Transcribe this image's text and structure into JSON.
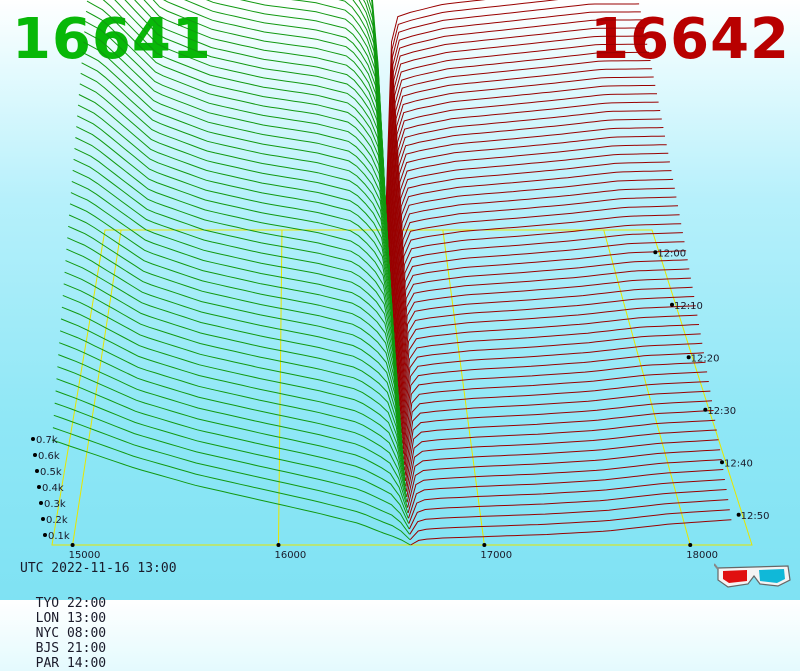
{
  "header": {
    "bid_price": "16641",
    "ask_price": "16642"
  },
  "footer": {
    "utc_line": "UTC 2022-11-16 13:00",
    "timezones": [
      "TYO 22:00",
      "LON 13:00",
      "NYC 08:00",
      "BJS 21:00",
      "PAR 14:00"
    ]
  },
  "colors": {
    "bid": "#08b808",
    "ask": "#b80000",
    "bid_line": "#119911",
    "ask_line": "#990000",
    "grid": "#e6e600",
    "text": "#1a1a2a"
  },
  "chart_data": {
    "type": "area",
    "subtype": "3d-orderbook-depth-waterfall",
    "x_ticks": [
      "15000",
      "16000",
      "17000",
      "18000"
    ],
    "x_range": [
      14900,
      18300
    ],
    "mid_price": 16641,
    "y_ticks": [
      "0.1k",
      "0.2k",
      "0.3k",
      "0.4k",
      "0.5k",
      "0.6k",
      "0.7k"
    ],
    "y_range": [
      0,
      800
    ],
    "time_ticks": [
      "12:00",
      "12:10",
      "12:20",
      "12:30",
      "12:40",
      "12:50"
    ],
    "time_range": [
      "12:00",
      "13:00"
    ],
    "series": [
      {
        "side": "bid",
        "x": [
          14900,
          15000,
          15300,
          15600,
          15900,
          16200,
          16400,
          16500,
          16580,
          16641
        ],
        "depth_oldest": [
          780,
          760,
          640,
          600,
          580,
          570,
          555,
          510,
          430,
          0
        ],
        "depth_newest": [
          150,
          140,
          110,
          85,
          65,
          45,
          30,
          18,
          10,
          0
        ]
      },
      {
        "side": "ask",
        "x": [
          16642,
          16660,
          16700,
          16800,
          17000,
          17300,
          17600,
          17900,
          18200
        ],
        "depth_oldest": [
          0,
          300,
          395,
          405,
          420,
          430,
          440,
          450,
          450
        ],
        "depth_newest": [
          0,
          5,
          8,
          10,
          12,
          15,
          20,
          30,
          36
        ]
      }
    ]
  }
}
